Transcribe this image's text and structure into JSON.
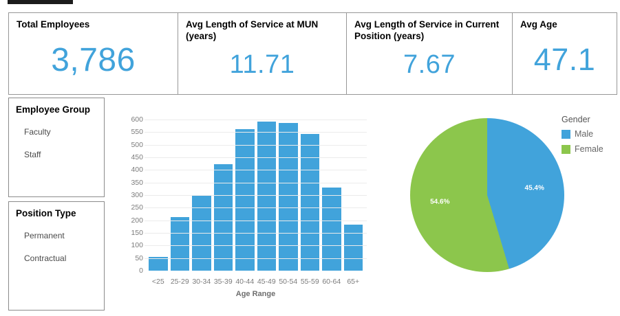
{
  "colors": {
    "blue": "#41a3db",
    "green": "#8cc64c"
  },
  "top_strip": true,
  "kpis": [
    {
      "title": "Total Employees",
      "value": "3,786"
    },
    {
      "title": "Avg Length of Service at MUN (years)",
      "value": "11.71"
    },
    {
      "title": "Avg Length of Service in Current Position (years)",
      "value": "7.67"
    },
    {
      "title": "Avg Age",
      "value": "47.1"
    }
  ],
  "filters": [
    {
      "title": "Employee Group",
      "items": [
        "Faculty",
        "Staff"
      ]
    },
    {
      "title": "Position Type",
      "items": [
        "Permanent",
        "Contractual"
      ]
    }
  ],
  "chart_data": [
    {
      "type": "bar",
      "title": "",
      "categories": [
        "<25",
        "25-29",
        "30-34",
        "35-39",
        "40-44",
        "45-49",
        "50-54",
        "55-59",
        "60-64",
        "65+"
      ],
      "values": [
        55,
        212,
        297,
        424,
        561,
        593,
        587,
        542,
        329,
        182
      ],
      "xlabel": "Age Range",
      "ylabel": "",
      "ylim": [
        0,
        600
      ],
      "ytick_step": 50,
      "grid": true,
      "bar_color": "#41a3db"
    },
    {
      "type": "pie",
      "legend_title": "Gender",
      "legend_position": "right",
      "slices": [
        {
          "label": "Male",
          "pct": 45.4,
          "data_label": "45.4%",
          "color": "#41a3db"
        },
        {
          "label": "Female",
          "pct": 54.6,
          "data_label": "54.6%",
          "color": "#8cc64c"
        }
      ]
    }
  ]
}
